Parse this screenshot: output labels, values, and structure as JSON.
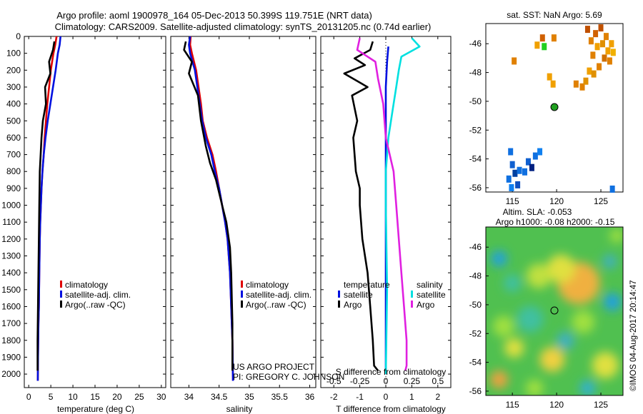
{
  "header": {
    "title_line1": "Argo profile: aoml 1900978_164 05-Dec-2013 50.399S 119.751E (NRT data)",
    "title_line2": "Climatology: CARS2009. Satellite-adjusted climatology: synTS_20131205.nc (0.74d earlier)"
  },
  "annotations": {
    "project_line1": "US ARGO PROJECT",
    "project_line2": "PI: GREGORY C. JOHNSON",
    "watermark": "©IMOS 04-Aug-2017 20:14:47"
  },
  "colors": {
    "climatology": "#e00000",
    "satellite_adj": "#0010e0",
    "argo": "#000000",
    "satellite_diff": "#00e0e0",
    "argo_sal_diff": "#e020e0"
  },
  "chart_data": [
    {
      "type": "line",
      "id": "temperature",
      "xlabel": "temperature (deg C)",
      "xlim": [
        -1,
        31
      ],
      "ylim": [
        2080,
        0
      ],
      "xticks": [
        0,
        5,
        10,
        15,
        20,
        25,
        30
      ],
      "yticks": [
        0,
        100,
        200,
        300,
        400,
        500,
        600,
        700,
        800,
        900,
        1000,
        1100,
        1200,
        1300,
        1400,
        1500,
        1600,
        1700,
        1800,
        1900,
        2000
      ],
      "legend": [
        "climatology",
        "satellite-adj. clim.",
        "Argo(..raw -QC)"
      ],
      "series": [
        {
          "name": "climatology",
          "color": "#e00000",
          "x": [
            6.3,
            6.0,
            5.6,
            5.0,
            4.6,
            4.2,
            3.9,
            3.6,
            3.4,
            3.1,
            2.9,
            2.75,
            2.6,
            2.5,
            2.4,
            2.3,
            2.2,
            2.15,
            2.1,
            2.05
          ],
          "y": [
            0,
            50,
            100,
            200,
            300,
            400,
            500,
            600,
            700,
            800,
            900,
            1000,
            1100,
            1200,
            1400,
            1600,
            1700,
            1800,
            1900,
            2040
          ]
        },
        {
          "name": "satellite-adj. clim.",
          "color": "#0010e0",
          "x": [
            7.2,
            7.0,
            6.6,
            6.1,
            5.5,
            4.9,
            4.3,
            3.8,
            3.4,
            3.1,
            2.9,
            2.75,
            2.6,
            2.5,
            2.4,
            2.3,
            2.2,
            2.15,
            2.1,
            2.05
          ],
          "y": [
            0,
            50,
            100,
            200,
            300,
            400,
            500,
            600,
            700,
            800,
            900,
            1000,
            1100,
            1200,
            1400,
            1600,
            1700,
            1800,
            1900,
            2040
          ]
        },
        {
          "name": "Argo(..raw -QC)",
          "color": "#000000",
          "x": [
            5.8,
            5.5,
            4.6,
            4.9,
            3.7,
            3.9,
            3.2,
            2.9,
            2.7,
            2.5,
            2.4,
            2.3,
            2.2,
            2.1,
            2.0,
            2.0
          ],
          "y": [
            30,
            80,
            150,
            220,
            300,
            400,
            500,
            600,
            700,
            800,
            1000,
            1200,
            1400,
            1600,
            1800,
            1980
          ]
        }
      ]
    },
    {
      "type": "line",
      "id": "salinity",
      "xlabel": "salinity",
      "xlim": [
        33.7,
        36.1
      ],
      "ylim": [
        2080,
        0
      ],
      "xticks": [
        34,
        34.5,
        35,
        35.5,
        36
      ],
      "legend": [
        "climatology",
        "satellite-adj. clim.",
        "Argo(..raw -QC)"
      ],
      "series": [
        {
          "name": "climatology",
          "color": "#e00000",
          "x": [
            34.03,
            34.02,
            34.05,
            34.12,
            34.16,
            34.2,
            34.23,
            34.3,
            34.39,
            34.45,
            34.5,
            34.55,
            34.6,
            34.64,
            34.68,
            34.7,
            34.72,
            34.73
          ],
          "y": [
            0,
            50,
            100,
            200,
            300,
            400,
            500,
            600,
            700,
            800,
            900,
            1000,
            1100,
            1200,
            1400,
            1600,
            1800,
            2040
          ]
        },
        {
          "name": "satellite-adj. clim.",
          "color": "#0010e0",
          "x": [
            34.02,
            34.0,
            34.02,
            34.1,
            34.14,
            34.18,
            34.22,
            34.28,
            34.37,
            34.43,
            34.5,
            34.55,
            34.6,
            34.64,
            34.68,
            34.7,
            34.72,
            34.73
          ],
          "y": [
            0,
            50,
            100,
            200,
            300,
            400,
            500,
            600,
            700,
            800,
            900,
            1000,
            1100,
            1200,
            1400,
            1600,
            1800,
            2040
          ]
        },
        {
          "name": "Argo(..raw -QC)",
          "color": "#000000",
          "x": [
            33.95,
            33.92,
            34.05,
            34.0,
            34.15,
            34.2,
            34.28,
            34.35,
            34.45,
            34.55,
            34.62,
            34.68,
            34.7,
            34.72,
            34.72
          ],
          "y": [
            30,
            80,
            150,
            220,
            350,
            500,
            650,
            750,
            850,
            1000,
            1100,
            1250,
            1400,
            1700,
            1980
          ]
        }
      ]
    },
    {
      "type": "line",
      "id": "differences",
      "xlabel": "T difference from climatology",
      "xlabel_top": "S difference from climatology",
      "xlim": [
        -2.5,
        2.5
      ],
      "ylim": [
        2080,
        0
      ],
      "xticks": [
        -2,
        -1,
        0,
        1,
        2
      ],
      "xticks_top": [
        "-0.5",
        "-0.25",
        "0",
        "0.25",
        "0.5"
      ],
      "legend_header_left": "temperature",
      "legend_header_right": "salinity",
      "legend": [
        "satellite",
        "Argo",
        "satellite",
        "Argo"
      ],
      "series": [
        {
          "name": "satellite",
          "color": "#0010e0",
          "x": [
            0.1,
            0.05,
            0.0,
            0.0,
            0.0,
            0.0,
            0.0,
            0.0
          ],
          "y": [
            60,
            150,
            300,
            500,
            700,
            1000,
            1500,
            2000
          ]
        },
        {
          "name": "Argo",
          "color": "#000000",
          "x": [
            -0.5,
            -0.6,
            -1.2,
            -0.8,
            -1.6,
            -0.7,
            -1.3,
            -1.1,
            -1.25,
            -1.2,
            -1.15,
            -1.0,
            -1.0,
            -0.9,
            -0.7,
            -0.6,
            -0.5,
            -0.45,
            -0.3
          ],
          "y": [
            30,
            80,
            130,
            170,
            220,
            300,
            350,
            500,
            600,
            700,
            800,
            900,
            1000,
            1200,
            1400,
            1600,
            1800,
            1950,
            1980
          ]
        },
        {
          "name": "satellite",
          "color": "#00e0e0",
          "x": [
            1.0,
            1.3,
            0.6,
            0.5,
            0.4,
            0.3,
            0.1,
            0.0,
            0.0,
            0.05,
            0.0
          ],
          "y": [
            10,
            60,
            120,
            200,
            300,
            400,
            600,
            800,
            1000,
            1500,
            2000
          ]
        },
        {
          "name": "Argo",
          "color": "#e020e0",
          "x": [
            -1.0,
            -1.1,
            -0.4,
            -0.3,
            -0.1,
            0.0,
            0.3,
            0.4,
            0.5,
            0.6,
            0.7,
            0.8,
            0.8,
            0.75
          ],
          "y": [
            10,
            80,
            150,
            250,
            400,
            600,
            800,
            1000,
            1200,
            1400,
            1600,
            1800,
            1950,
            1980
          ]
        }
      ]
    },
    {
      "type": "scatter",
      "id": "sst_map",
      "title": "sat. SST: NaN Argo: 5.69",
      "xlim": [
        112,
        127.5
      ],
      "ylim": [
        -56.3,
        -44.6
      ],
      "xticks": [
        115,
        120,
        125
      ],
      "yticks": [
        -46,
        -48,
        -50,
        -52,
        -54,
        -56
      ],
      "profile_marker": [
        119.75,
        -50.4
      ],
      "cells": [
        {
          "x": 115.2,
          "y": -47.2,
          "color": "#e08000"
        },
        {
          "x": 117.8,
          "y": -46.1,
          "color": "#f0a000"
        },
        {
          "x": 118.4,
          "y": -45.6,
          "color": "#d06000"
        },
        {
          "x": 118.6,
          "y": -46.2,
          "color": "#20d020"
        },
        {
          "x": 119.2,
          "y": -48.3,
          "color": "#f0a000"
        },
        {
          "x": 119.7,
          "y": -45.6,
          "color": "#e08000"
        },
        {
          "x": 119.6,
          "y": -48.8,
          "color": "#f0a000"
        },
        {
          "x": 122.2,
          "y": -48.8,
          "color": "#e08000"
        },
        {
          "x": 122.9,
          "y": -49.0,
          "color": "#e08000"
        },
        {
          "x": 123.3,
          "y": -48.6,
          "color": "#e09000"
        },
        {
          "x": 123.5,
          "y": -45.0,
          "color": "#c05000"
        },
        {
          "x": 123.9,
          "y": -45.8,
          "color": "#e08000"
        },
        {
          "x": 124.1,
          "y": -46.8,
          "color": "#e08000"
        },
        {
          "x": 124.4,
          "y": -45.3,
          "color": "#d06000"
        },
        {
          "x": 124.6,
          "y": -46.2,
          "color": "#f0a000"
        },
        {
          "x": 124.8,
          "y": -47.6,
          "color": "#e08000"
        },
        {
          "x": 125.0,
          "y": -44.9,
          "color": "#c05000"
        },
        {
          "x": 125.2,
          "y": -46.0,
          "color": "#e09000"
        },
        {
          "x": 125.4,
          "y": -47.0,
          "color": "#d07000"
        },
        {
          "x": 125.6,
          "y": -45.5,
          "color": "#e08000"
        },
        {
          "x": 125.8,
          "y": -46.5,
          "color": "#f0a000"
        },
        {
          "x": 126.0,
          "y": -47.2,
          "color": "#e08000"
        },
        {
          "x": 126.2,
          "y": -46.0,
          "color": "#f0a000"
        },
        {
          "x": 126.4,
          "y": -46.6,
          "color": "#f0b000"
        },
        {
          "x": 123.7,
          "y": -47.9,
          "color": "#f0a000"
        },
        {
          "x": 124.2,
          "y": -48.1,
          "color": "#e09000"
        },
        {
          "x": 114.8,
          "y": -53.5,
          "color": "#1070e0"
        },
        {
          "x": 115.0,
          "y": -54.4,
          "color": "#1060d0"
        },
        {
          "x": 115.3,
          "y": -55.0,
          "color": "#0040a0"
        },
        {
          "x": 114.6,
          "y": -55.4,
          "color": "#1070e0"
        },
        {
          "x": 115.6,
          "y": -55.8,
          "color": "#1050c0"
        },
        {
          "x": 114.9,
          "y": -56.0,
          "color": "#1080f0"
        },
        {
          "x": 116.4,
          "y": -54.9,
          "color": "#1070e0"
        },
        {
          "x": 116.8,
          "y": -54.2,
          "color": "#1060d0"
        },
        {
          "x": 117.2,
          "y": -54.6,
          "color": "#002080"
        },
        {
          "x": 117.6,
          "y": -53.8,
          "color": "#1070e0"
        },
        {
          "x": 118.1,
          "y": -53.5,
          "color": "#1080f0"
        },
        {
          "x": 115.8,
          "y": -54.8,
          "color": "#1070e0"
        },
        {
          "x": 126.3,
          "y": -56.1,
          "color": "#1070e0"
        }
      ]
    },
    {
      "type": "heatmap",
      "id": "sla_map",
      "title_line1": "Altim. SLA: -0.053",
      "title_line2": "Argo h1000: -0.08 h2000: -0.15",
      "xlim": [
        112,
        127.5
      ],
      "ylim": [
        -56.3,
        -44.6
      ],
      "xticks": [
        115,
        120,
        125
      ],
      "yticks": [
        -46,
        -48,
        -50,
        -52,
        -54,
        -56
      ],
      "profile_marker": [
        119.75,
        -50.4
      ],
      "background": "#50c050",
      "blobs": [
        {
          "x": 122.7,
          "y": -48.6,
          "r": 1.1,
          "color": "#c04000"
        },
        {
          "x": 122.5,
          "y": -48.5,
          "r": 2.4,
          "color": "#f0b040"
        },
        {
          "x": 120.5,
          "y": -47.5,
          "r": 1.6,
          "color": "#e0e040"
        },
        {
          "x": 118.0,
          "y": -48.0,
          "r": 1.4,
          "color": "#c0e040"
        },
        {
          "x": 113.5,
          "y": -46.8,
          "r": 0.9,
          "color": "#20a0e0"
        },
        {
          "x": 115.0,
          "y": -48.5,
          "r": 1.0,
          "color": "#40c0a0"
        },
        {
          "x": 126.3,
          "y": -49.8,
          "r": 1.0,
          "color": "#20a0e0"
        },
        {
          "x": 126.0,
          "y": -47.0,
          "r": 0.8,
          "color": "#40b0c0"
        },
        {
          "x": 123.0,
          "y": -51.2,
          "r": 1.3,
          "color": "#a0e040"
        },
        {
          "x": 117.0,
          "y": -51.0,
          "r": 1.5,
          "color": "#40c0a0"
        },
        {
          "x": 121.0,
          "y": -52.5,
          "r": 1.0,
          "color": "#40b0c0"
        },
        {
          "x": 119.5,
          "y": -53.8,
          "r": 1.4,
          "color": "#f0d040"
        },
        {
          "x": 115.2,
          "y": -53.0,
          "r": 1.1,
          "color": "#e0e040"
        },
        {
          "x": 113.5,
          "y": -55.2,
          "r": 1.0,
          "color": "#f0a040"
        },
        {
          "x": 125.5,
          "y": -54.2,
          "r": 1.5,
          "color": "#e0e040"
        },
        {
          "x": 123.5,
          "y": -55.8,
          "r": 0.9,
          "color": "#30b0d0"
        },
        {
          "x": 117.5,
          "y": -55.8,
          "r": 1.0,
          "color": "#a0e040"
        },
        {
          "x": 114.0,
          "y": -51.5,
          "r": 1.2,
          "color": "#a0e040"
        },
        {
          "x": 126.8,
          "y": -45.2,
          "r": 0.8,
          "color": "#a0e040"
        }
      ]
    }
  ]
}
